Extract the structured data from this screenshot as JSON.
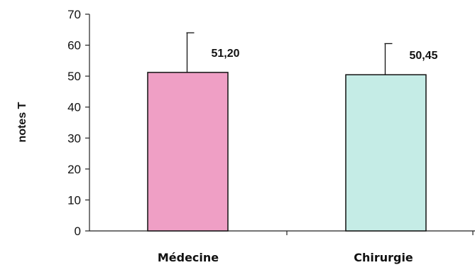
{
  "chart_data": {
    "type": "bar",
    "categories": [
      "Médecine",
      "Chirurgie"
    ],
    "values": [
      51.2,
      50.45
    ],
    "value_labels": [
      "51,20",
      "50,45"
    ],
    "error_upper": [
      64.0,
      60.5
    ],
    "ylabel": "notes T",
    "ylim": [
      0,
      70
    ],
    "yticks": [
      0,
      10,
      20,
      30,
      40,
      50,
      60,
      70
    ],
    "bar_colors": [
      "#ef9fc5",
      "#c5ece6"
    ],
    "grid": false
  }
}
